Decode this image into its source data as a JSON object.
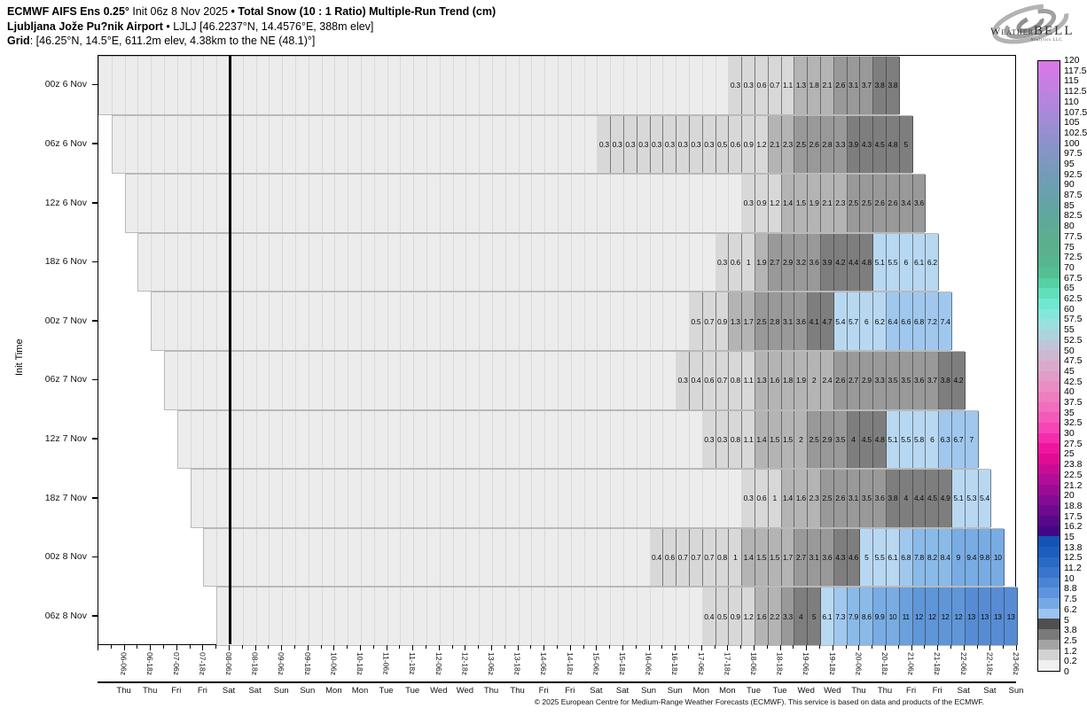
{
  "header": {
    "title": {
      "model": "ECMWF AIFS Ens 0.25°",
      "init": " Init 06z 8 Nov 2025 ",
      "product": "• Total Snow (10 : 1 Ratio) Multiple-Run Trend (cm)"
    },
    "subtitle": {
      "station": "Ljubljana Jože Pu?nik Airport",
      "details": " • LJLJ [46.2237°N, 14.4576°E, 388m elev]"
    },
    "grid": {
      "label": "Grid",
      "details": ": [46.25°N, 14.5°E, 611.2m elev, 4.38km to the NE (48.1)°]"
    }
  },
  "logo": {
    "name_prefix": "Weather",
    "name_suffix": "BELL",
    "tagline": "Analytics LLC"
  },
  "footer": {
    "copyright": "© 2025 European Centre for Medium-Range Weather Forecasts (ECMWF). This service is based on data and products of the ECMWF."
  },
  "chart_data": {
    "type": "heatmap",
    "title": "ECMWF AIFS Ens 0.25° Init 06z 8 Nov 2025 • Total Snow (10 : 1 Ratio) Multiple-Run Trend (cm)",
    "ylabel": "Init Time",
    "unit": "cm",
    "columns_total": 70,
    "hours_per_column": 6,
    "x_axis_start": "05-18z",
    "now_line_boundary": 10,
    "x_ticks": [
      {
        "boundary": 2,
        "label": "06-06z",
        "day": "Thu"
      },
      {
        "boundary": 4,
        "label": "06-18z",
        "day": "Thu"
      },
      {
        "boundary": 6,
        "label": "07-06z",
        "day": "Fri"
      },
      {
        "boundary": 8,
        "label": "07-18z",
        "day": "Fri"
      },
      {
        "boundary": 10,
        "label": "08-06z",
        "day": "Sat"
      },
      {
        "boundary": 12,
        "label": "08-18z",
        "day": "Sat"
      },
      {
        "boundary": 14,
        "label": "09-06z",
        "day": "Sun"
      },
      {
        "boundary": 16,
        "label": "09-18z",
        "day": "Sun"
      },
      {
        "boundary": 18,
        "label": "10-06z",
        "day": "Mon"
      },
      {
        "boundary": 20,
        "label": "10-18z",
        "day": "Mon"
      },
      {
        "boundary": 22,
        "label": "11-06z",
        "day": "Tue"
      },
      {
        "boundary": 24,
        "label": "11-18z",
        "day": "Tue"
      },
      {
        "boundary": 26,
        "label": "12-06z",
        "day": "Wed"
      },
      {
        "boundary": 28,
        "label": "12-18z",
        "day": "Wed"
      },
      {
        "boundary": 30,
        "label": "13-06z",
        "day": "Thu"
      },
      {
        "boundary": 32,
        "label": "13-18z",
        "day": "Thu"
      },
      {
        "boundary": 34,
        "label": "14-06z",
        "day": "Fri"
      },
      {
        "boundary": 36,
        "label": "14-18z",
        "day": "Fri"
      },
      {
        "boundary": 38,
        "label": "15-06z",
        "day": "Sat"
      },
      {
        "boundary": 40,
        "label": "15-18z",
        "day": "Sat"
      },
      {
        "boundary": 42,
        "label": "16-06z",
        "day": "Sun"
      },
      {
        "boundary": 44,
        "label": "16-18z",
        "day": "Sun"
      },
      {
        "boundary": 46,
        "label": "17-06z",
        "day": "Mon"
      },
      {
        "boundary": 48,
        "label": "17-18z",
        "day": "Mon"
      },
      {
        "boundary": 50,
        "label": "18-06z",
        "day": "Tue"
      },
      {
        "boundary": 52,
        "label": "18-18z",
        "day": "Tue"
      },
      {
        "boundary": 54,
        "label": "19-06z",
        "day": "Wed"
      },
      {
        "boundary": 56,
        "label": "19-18z",
        "day": "Wed"
      },
      {
        "boundary": 58,
        "label": "20-06z",
        "day": "Thu"
      },
      {
        "boundary": 60,
        "label": "20-18z",
        "day": "Thu"
      },
      {
        "boundary": 62,
        "label": "21-06z",
        "day": "Fri"
      },
      {
        "boundary": 64,
        "label": "21-18z",
        "day": "Fri"
      },
      {
        "boundary": 66,
        "label": "22-06z",
        "day": "Sat"
      },
      {
        "boundary": 68,
        "label": "22-18z",
        "day": "Sat"
      },
      {
        "boundary": 70,
        "label": "23-06z",
        "day": "Sun"
      }
    ],
    "rows": [
      {
        "init": "00z 6 Nov",
        "band_start_col": 0,
        "band_end_col": 60,
        "values_start_col": 48,
        "values": [
          "0.3",
          "0.3",
          "0.6",
          "0.7",
          "1.1",
          "1.3",
          "1.8",
          "2.1",
          "2.6",
          "3.1",
          "3.7",
          "3.8",
          "3.8"
        ]
      },
      {
        "init": "06z 6 Nov",
        "band_start_col": 1,
        "band_end_col": 61,
        "values_start_col": 38,
        "low_band": [
          12,
          23
        ],
        "values": [
          "0.3",
          "0.3",
          "0.3",
          "0.3",
          "0.3",
          "0.3",
          "0.3",
          "0.3",
          "0.3",
          "0.5",
          "0.6",
          "0.9",
          "1.2",
          "2.1",
          "2.3",
          "2.5",
          "2.6",
          "2.8",
          "3.3",
          "3.9",
          "4.3",
          "4.5",
          "4.8",
          "5"
        ]
      },
      {
        "init": "12z 6 Nov",
        "band_start_col": 2,
        "band_end_col": 62,
        "values_start_col": 49,
        "low_band": [
          2
        ],
        "values": [
          "0.3",
          "0.9",
          "1.2",
          "1.4",
          "1.5",
          "1.9",
          "2.1",
          "2.3",
          "2.5",
          "2.5",
          "2.6",
          "2.6",
          "3.4",
          "3.6"
        ]
      },
      {
        "init": "18z 6 Nov",
        "band_start_col": 3,
        "band_end_col": 63,
        "values_start_col": 47,
        "low_band": [
          16
        ],
        "values": [
          "0.3",
          "0.6",
          "1",
          "1.9",
          "2.7",
          "2.9",
          "3.2",
          "3.6",
          "3.9",
          "4.2",
          "4.4",
          "4.8",
          "5.1",
          "5.5",
          "6",
          "6.1",
          "6.2"
        ]
      },
      {
        "init": "00z 7 Nov",
        "band_start_col": 4,
        "band_end_col": 64,
        "values_start_col": 45,
        "low_band": [
          14
        ],
        "values": [
          "0.5",
          "0.7",
          "0.9",
          "1.3",
          "1.7",
          "2.5",
          "2.8",
          "3.1",
          "3.6",
          "4.1",
          "4.7",
          "5.4",
          "5.7",
          "6",
          "6.2",
          "6.4",
          "6.6",
          "6.8",
          "7.2",
          "7.4"
        ]
      },
      {
        "init": "06z 7 Nov",
        "band_start_col": 5,
        "band_end_col": 65,
        "values_start_col": 44,
        "values": [
          "0.3",
          "0.4",
          "0.6",
          "0.7",
          "0.8",
          "1.1",
          "1.3",
          "1.6",
          "1.8",
          "1.9",
          "2",
          "2.4",
          "2.6",
          "2.7",
          "2.9",
          "3.3",
          "3.5",
          "3.5",
          "3.6",
          "3.7",
          "3.8",
          "4.2"
        ]
      },
      {
        "init": "12z 7 Nov",
        "band_start_col": 6,
        "band_end_col": 66,
        "values_start_col": 46,
        "values": [
          "0.3",
          "0.3",
          "0.8",
          "1.1",
          "1.4",
          "1.5",
          "1.5",
          "2",
          "2.5",
          "2.9",
          "3.5",
          "4",
          "4.5",
          "4.8",
          "5.1",
          "5.5",
          "5.8",
          "6",
          "6.3",
          "6.7",
          "7"
        ]
      },
      {
        "init": "18z 7 Nov",
        "band_start_col": 7,
        "band_end_col": 67,
        "values_start_col": 49,
        "values": [
          "0.3",
          "0.6",
          "1",
          "1.4",
          "1.6",
          "2.3",
          "2.5",
          "2.6",
          "3.1",
          "3.5",
          "3.6",
          "3.8",
          "4",
          "4.4",
          "4.5",
          "4.9",
          "5.1",
          "5.3",
          "5.4"
        ]
      },
      {
        "init": "00z 8 Nov",
        "band_start_col": 8,
        "band_end_col": 68,
        "values_start_col": 42,
        "low_band": [
          26
        ],
        "values": [
          "0.4",
          "0.6",
          "0.7",
          "0.7",
          "0.7",
          "0.8",
          "1",
          "1.4",
          "1.5",
          "1.5",
          "1.7",
          "2.7",
          "3.1",
          "3.6",
          "4.3",
          "4.6",
          "5",
          "5.5",
          "6.1",
          "6.8",
          "7.8",
          "8.2",
          "8.4",
          "9",
          "9.4",
          "9.8",
          "10"
        ]
      },
      {
        "init": "06z 8 Nov",
        "band_start_col": 9,
        "band_end_col": 69,
        "values_start_col": 46,
        "low_band": [
          3,
          8,
          14
        ],
        "values": [
          "0.4",
          "0.5",
          "0.9",
          "1.2",
          "1.6",
          "2.2",
          "3.3",
          "4",
          "5",
          "6.1",
          "7.3",
          "7.9",
          "8.6",
          "9.9",
          "10",
          "11",
          "12",
          "12",
          "12",
          "12",
          "13",
          "13",
          "13",
          "13"
        ]
      }
    ],
    "value_bands": [
      {
        "min": 0,
        "color": "#ececec"
      },
      {
        "min": 0.2,
        "color": "#d8d8d8"
      },
      {
        "min": 1.2,
        "color": "#b4b4b4"
      },
      {
        "min": 2.5,
        "color": "#999999"
      },
      {
        "min": 3.8,
        "color": "#7e7e7e"
      },
      {
        "min": 5,
        "color": "#b8d8f2"
      },
      {
        "min": 6.2,
        "color": "#a0c8ee"
      },
      {
        "min": 7.5,
        "color": "#8abae8"
      },
      {
        "min": 8.8,
        "color": "#78ace2"
      },
      {
        "min": 10,
        "color": "#6aa0dc"
      },
      {
        "min": 11.2,
        "color": "#5f96d8"
      },
      {
        "min": 12.5,
        "color": "#578cd4"
      }
    ],
    "colorbar": {
      "labels": [
        "120",
        "117.5",
        "115",
        "112.5",
        "110",
        "107.5",
        "105",
        "102.5",
        "100",
        "97.5",
        "95",
        "92.5",
        "90",
        "87.5",
        "85",
        "82.5",
        "80",
        "77.5",
        "75",
        "72.5",
        "70",
        "67.5",
        "65",
        "62.5",
        "60",
        "57.5",
        "55",
        "52.5",
        "50",
        "47.5",
        "45",
        "42.5",
        "40",
        "37.5",
        "35",
        "32.5",
        "30",
        "27.5",
        "25",
        "23.8",
        "22.5",
        "21.2",
        "20",
        "18.8",
        "17.5",
        "16.2",
        "15",
        "13.8",
        "12.5",
        "11.2",
        "10",
        "8.8",
        "7.5",
        "6.2",
        "5",
        "3.8",
        "2.5",
        "1.2",
        "0.2",
        "0"
      ],
      "segment_colors": [
        "#d878e8",
        "#cd7ce5",
        "#c380e2",
        "#b884de",
        "#ae87da",
        "#a38bd6",
        "#998ed1",
        "#9091cc",
        "#8794c7",
        "#7f97c1",
        "#789abb",
        "#719db5",
        "#6ba0ae",
        "#66a3a8",
        "#62a6a1",
        "#5fa99a",
        "#5dac93",
        "#5caf8c",
        "#5bb18e",
        "#57b68f",
        "#53c093",
        "#55d1a4",
        "#5fe0bb",
        "#6fe8cf",
        "#83e8dc",
        "#99e0e0",
        "#add3dd",
        "#bfc5d8",
        "#cdb7d2",
        "#d9aacc",
        "#e19cc7",
        "#e88ec3",
        "#ed7ec0",
        "#f16dbd",
        "#f45aba",
        "#f645b5",
        "#f52dac",
        "#f0149f",
        "#e20b93",
        "#ca0c95",
        "#b20d97",
        "#9b0c96",
        "#840b93",
        "#6e0a8f",
        "#58088a",
        "#430785",
        "#1254b4",
        "#1c5ebd",
        "#296ac5",
        "#3875cd",
        "#4a84d5",
        "#5d94dd",
        "#75a8e5",
        "#9cc4ef",
        "#4f4f4f",
        "#797979",
        "#a4a4a4",
        "#d2d2d2",
        "#f0f0f0"
      ]
    }
  }
}
